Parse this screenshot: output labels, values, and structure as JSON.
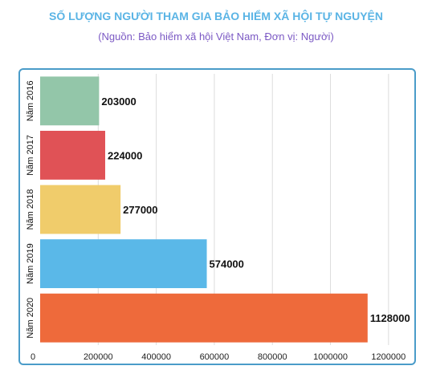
{
  "chart_data": {
    "type": "bar",
    "orientation": "horizontal",
    "title": "SỐ LƯỢNG NGƯỜI THAM GIA BẢO HIỂM XÃ HỘI TỰ NGUYỆN",
    "subtitle": "(Nguồn: Bảo hiểm xã hội Việt Nam, Đơn vị: Người)",
    "categories": [
      "Năm 2016",
      "Năm 2017",
      "Năm 2018",
      "Năm 2019",
      "Năm 2020"
    ],
    "values": [
      203000,
      224000,
      277000,
      574000,
      1128000
    ],
    "value_labels": [
      "203000",
      "224000",
      "277000",
      "574000",
      "1128000"
    ],
    "colors": [
      "#93c6a9",
      "#e05256",
      "#f0cc6b",
      "#5ab8e8",
      "#ee6a3b"
    ],
    "xlim": [
      0,
      1300000
    ],
    "xticks": [
      0,
      200000,
      400000,
      600000,
      800000,
      1000000,
      1200000
    ],
    "xtick_labels": [
      "0",
      "200000",
      "400000",
      "600000",
      "800000",
      "1000000",
      "1200000"
    ],
    "grid": true,
    "legend": "none"
  }
}
